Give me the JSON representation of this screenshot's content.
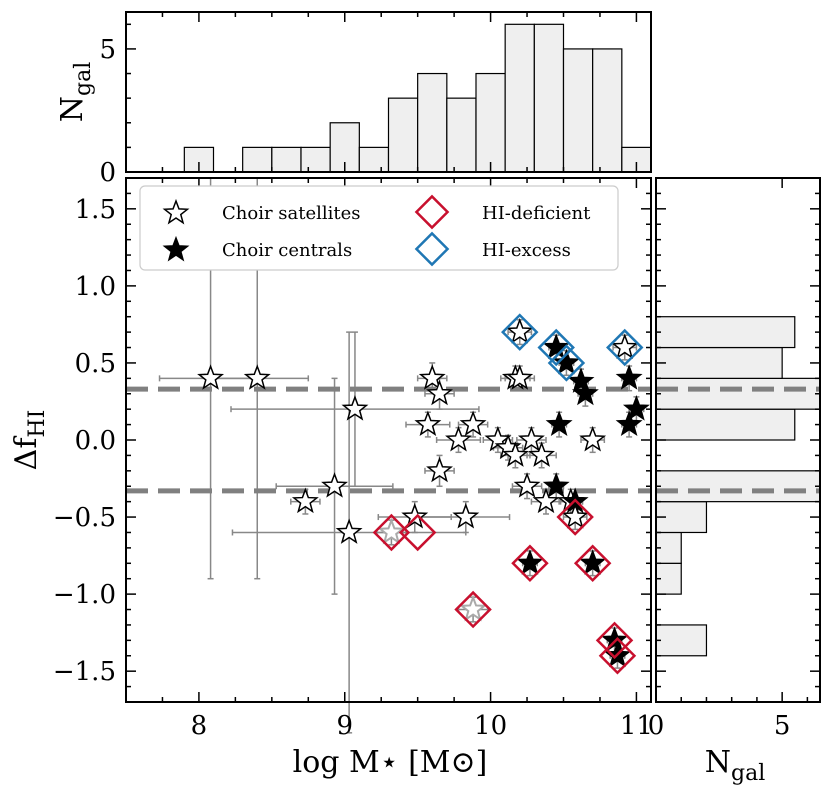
{
  "chart_data": {
    "type": "scatter",
    "xlabel": "log M⋆ [M⊙]",
    "ylabel": "ΔfHI",
    "ylabel_main": "Δf",
    "ylabel_sub": "HI",
    "xlim": [
      7.5,
      11.1
    ],
    "ylim": [
      -1.7,
      1.7
    ],
    "x_ticks": [
      "8",
      "9",
      "10",
      "11"
    ],
    "x_tick_values": [
      8,
      9,
      10,
      11
    ],
    "y_ticks": [
      "1.5",
      "1.0",
      "0.5",
      "0.0",
      "−0.5",
      "−1.0",
      "−1.5"
    ],
    "y_tick_values": [
      1.5,
      1.0,
      0.5,
      0.0,
      -0.5,
      -1.0,
      -1.5
    ],
    "thresholds": [
      0.33,
      -0.33
    ],
    "legend": {
      "satellites": "Choir satellites",
      "centrals": "Choir centrals",
      "deficient": "HI-deficient",
      "excess": "HI-excess"
    },
    "satellites": [
      {
        "x": 8.08,
        "y": 0.4,
        "xerr": 0.35,
        "yerr": 1.3
      },
      {
        "x": 8.4,
        "y": 0.4,
        "xerr": 0.35,
        "yerr": 1.3
      },
      {
        "x": 8.73,
        "y": -0.4,
        "xerr": 0.1,
        "yerr": 0.08
      },
      {
        "x": 8.93,
        "y": -0.3,
        "xerr": 0.4,
        "yerr": 0.7
      },
      {
        "x": 9.03,
        "y": -0.6,
        "xerr": 0.8,
        "yerr": 1.3
      },
      {
        "x": 9.07,
        "y": 0.2,
        "xerr": 0.85,
        "yerr": 0.5
      },
      {
        "x": 9.48,
        "y": -0.5,
        "xerr": 0.25,
        "yerr": 0.1
      },
      {
        "x": 9.57,
        "y": 0.1,
        "xerr": 0.15,
        "yerr": 0.08
      },
      {
        "x": 9.6,
        "y": 0.4,
        "xerr": 0.1,
        "yerr": 0.1
      },
      {
        "x": 9.65,
        "y": 0.3,
        "xerr": 0.1,
        "yerr": 0.1
      },
      {
        "x": 9.65,
        "y": -0.2,
        "xerr": 0.1,
        "yerr": 0.1
      },
      {
        "x": 9.78,
        "y": 0.0,
        "xerr": 0.15,
        "yerr": 0.08
      },
      {
        "x": 9.83,
        "y": -0.5,
        "xerr": 0.3,
        "yerr": 0.1
      },
      {
        "x": 9.88,
        "y": 0.1,
        "xerr": 0.1,
        "yerr": 0.08
      },
      {
        "x": 10.05,
        "y": 0.0,
        "xerr": 0.1,
        "yerr": 0.08
      },
      {
        "x": 10.12,
        "y": -0.05,
        "xerr": 0.1,
        "yerr": 0.08
      },
      {
        "x": 10.17,
        "y": -0.1,
        "xerr": 0.1,
        "yerr": 0.08
      },
      {
        "x": 10.17,
        "y": 0.4,
        "xerr": 0.1,
        "yerr": 0.08
      },
      {
        "x": 10.2,
        "y": 0.4,
        "xerr": 0.1,
        "yerr": 0.08
      },
      {
        "x": 10.25,
        "y": -0.3,
        "xerr": 0.1,
        "yerr": 0.08
      },
      {
        "x": 10.28,
        "y": 0.0,
        "xerr": 0.1,
        "yerr": 0.08
      },
      {
        "x": 10.35,
        "y": -0.1,
        "xerr": 0.1,
        "yerr": 0.08
      },
      {
        "x": 10.38,
        "y": -0.4,
        "xerr": 0.1,
        "yerr": 0.08
      },
      {
        "x": 10.7,
        "y": 0.0,
        "xerr": 0.08,
        "yerr": 0.08
      },
      {
        "x": 10.2,
        "y": 0.7,
        "xerr": 0.08,
        "yerr": 0.08
      },
      {
        "x": 10.92,
        "y": 0.6,
        "xerr": 0.08,
        "yerr": 0.08
      },
      {
        "x": 10.55,
        "y": -0.4,
        "xerr": 0.08,
        "yerr": 0.08
      },
      {
        "x": 10.58,
        "y": -0.5,
        "xerr": 0.08,
        "yerr": 0.08
      }
    ],
    "satellites_faded": [
      {
        "x": 9.32,
        "y": -0.6,
        "xerr": 0.1,
        "yerr": 0.08
      },
      {
        "x": 9.88,
        "y": -1.1,
        "xerr": 0.1,
        "yerr": 0.08
      }
    ],
    "centrals": [
      {
        "x": 10.45,
        "y": 0.6,
        "xerr": 0.05,
        "yerr": 0.08
      },
      {
        "x": 10.52,
        "y": 0.5,
        "xerr": 0.05,
        "yerr": 0.08
      },
      {
        "x": 10.62,
        "y": 0.38,
        "xerr": 0.05,
        "yerr": 0.08
      },
      {
        "x": 10.65,
        "y": 0.3,
        "xerr": 0.05,
        "yerr": 0.08
      },
      {
        "x": 10.95,
        "y": 0.4,
        "xerr": 0.05,
        "yerr": 0.08
      },
      {
        "x": 10.95,
        "y": 0.1,
        "xerr": 0.05,
        "yerr": 0.08
      },
      {
        "x": 11.0,
        "y": 0.2,
        "xerr": 0.05,
        "yerr": 0.08
      },
      {
        "x": 10.47,
        "y": 0.1,
        "xerr": 0.05,
        "yerr": 0.08
      },
      {
        "x": 10.45,
        "y": -0.3,
        "xerr": 0.05,
        "yerr": 0.08
      },
      {
        "x": 10.58,
        "y": -0.4,
        "xerr": 0.05,
        "yerr": 0.08
      },
      {
        "x": 10.27,
        "y": -0.8,
        "xerr": 0.05,
        "yerr": 0.08
      },
      {
        "x": 10.7,
        "y": -0.8,
        "xerr": 0.05,
        "yerr": 0.08
      },
      {
        "x": 10.85,
        "y": -1.3,
        "xerr": 0.05,
        "yerr": 0.08
      },
      {
        "x": 10.87,
        "y": -1.4,
        "xerr": 0.05,
        "yerr": 0.08
      }
    ],
    "deficient": [
      {
        "x": 9.32,
        "y": -0.6
      },
      {
        "x": 9.5,
        "y": -0.6
      },
      {
        "x": 9.88,
        "y": -1.1
      },
      {
        "x": 10.27,
        "y": -0.8
      },
      {
        "x": 10.58,
        "y": -0.5
      },
      {
        "x": 10.7,
        "y": -0.8
      },
      {
        "x": 10.85,
        "y": -1.3
      },
      {
        "x": 10.87,
        "y": -1.4
      }
    ],
    "excess": [
      {
        "x": 10.2,
        "y": 0.7
      },
      {
        "x": 10.45,
        "y": 0.6
      },
      {
        "x": 10.52,
        "y": 0.5
      },
      {
        "x": 10.92,
        "y": 0.6
      }
    ],
    "top_hist": {
      "ylabel_main": "N",
      "ylabel_sub": "gal",
      "ylim": [
        0,
        6.5
      ],
      "y_ticks": [
        "0",
        "5"
      ],
      "y_tick_values": [
        0,
        5
      ],
      "bin_edges": [
        7.9,
        8.1,
        8.3,
        8.5,
        8.7,
        8.9,
        9.1,
        9.3,
        9.5,
        9.7,
        9.9,
        10.1,
        10.3,
        10.5,
        10.7,
        10.9,
        11.1
      ],
      "counts": [
        1,
        0,
        1,
        1,
        1,
        2,
        1,
        3,
        4,
        3,
        4,
        6,
        6,
        5,
        5,
        1
      ]
    },
    "right_hist": {
      "xlabel_main": "N",
      "xlabel_sub": "gal",
      "xlim": [
        0,
        6.5
      ],
      "x_ticks": [
        "0",
        "5"
      ],
      "x_tick_values": [
        0,
        5
      ],
      "bin_edges": [
        -1.4,
        -1.2,
        -1.0,
        -0.8,
        -0.6,
        -0.4,
        -0.2,
        0.0,
        0.2,
        0.4,
        0.6,
        0.8
      ],
      "counts": [
        2,
        0,
        1,
        1,
        2,
        6.5,
        0,
        5.5,
        6.5,
        5,
        5.5
      ]
    }
  }
}
